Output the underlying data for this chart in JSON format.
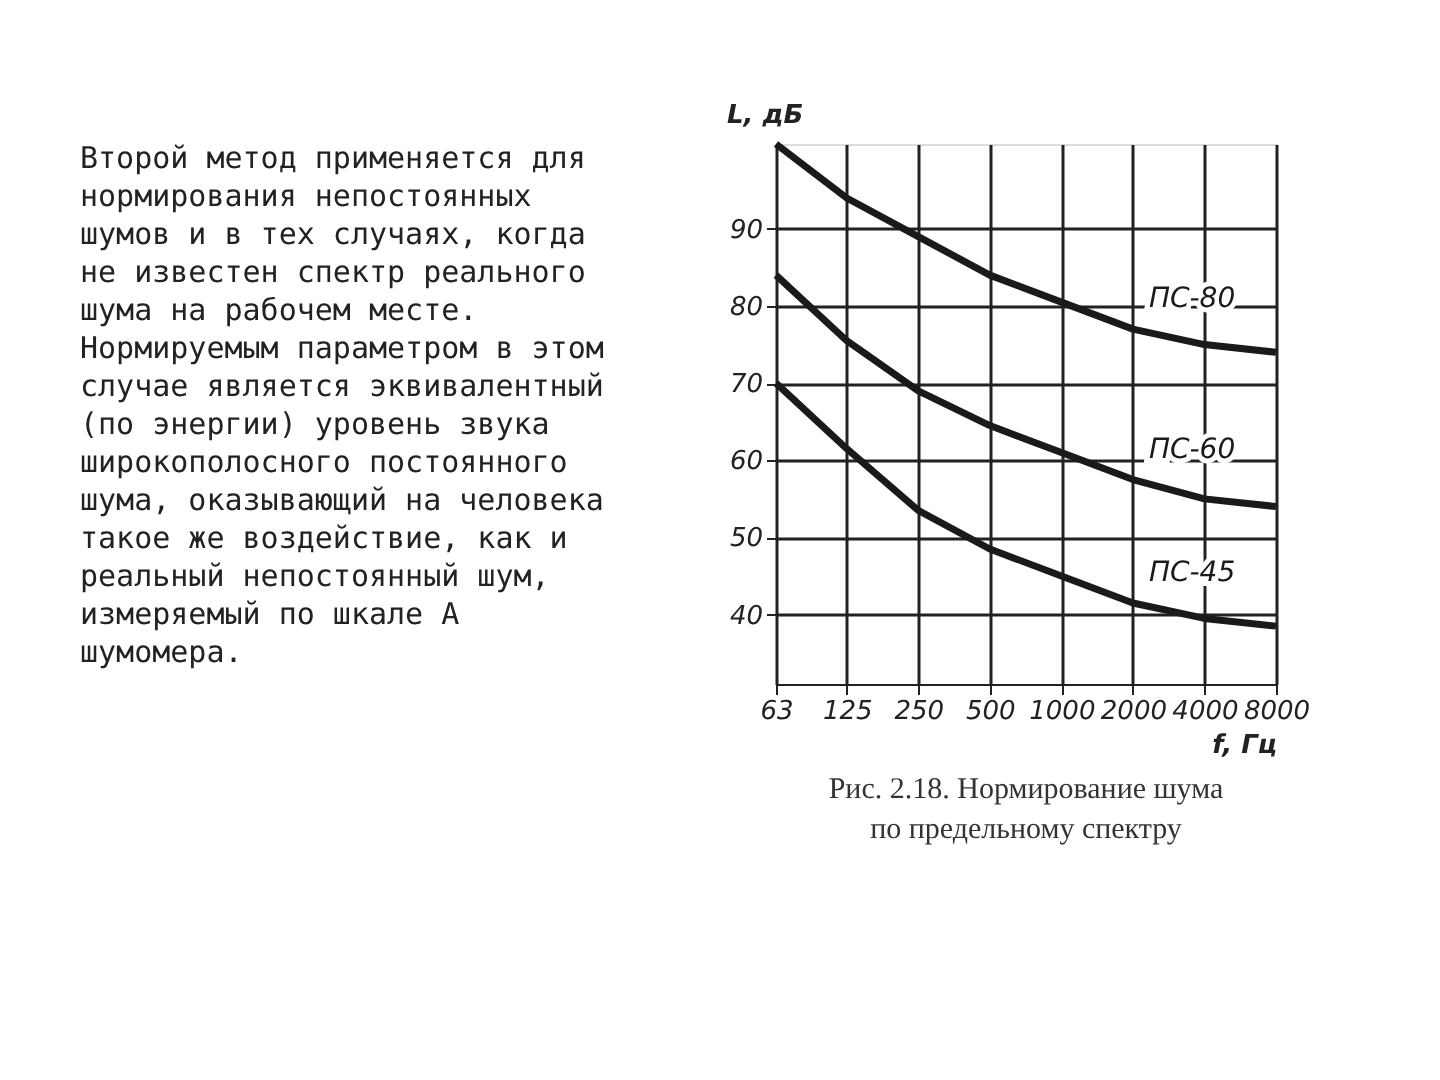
{
  "chart_data": {
    "type": "line",
    "xlabel": "f, Гц",
    "ylabel": "L, дБ",
    "x": [
      63,
      125,
      250,
      500,
      1000,
      2000,
      4000,
      8000
    ],
    "log": "x",
    "xlim": [
      63,
      8000
    ],
    "xticks": [
      63,
      125,
      250,
      500,
      1000,
      2000,
      4000,
      8000
    ],
    "ylim": [
      31,
      101
    ],
    "yticks": [
      40,
      50,
      60,
      70,
      80,
      90
    ],
    "grid": true,
    "line_style": "solid",
    "marker": "none",
    "series": [
      {
        "name": "ПС-80",
        "color": "#1a1a1a",
        "values": [
          101,
          94,
          89,
          84,
          80.5,
          77,
          75,
          74
        ]
      },
      {
        "name": "ПС-60",
        "color": "#1a1a1a",
        "values": [
          84,
          75.5,
          69,
          64.5,
          61,
          57.5,
          55,
          54
        ]
      },
      {
        "name": "ПС-45",
        "color": "#1a1a1a",
        "values": [
          70,
          61.5,
          53.5,
          48.5,
          45,
          41.5,
          39.5,
          38.5
        ]
      }
    ],
    "annotations": [
      "Второй метод применяется для нормирования непостоянных шумов и в тех случаях, когда не известен спектр реального шума на рабочем месте. Нормируемым параметром в этом случае является эквивалентный (по энергии) уровень звука широкополосного постоянного шума, оказывающий на человека такое же воздействие, как и реальный непостоянный шум, измеряемый по шкале А шумомера.",
      "Рис. 2.18. Нормирование шума по предельному спектру"
    ]
  }
}
